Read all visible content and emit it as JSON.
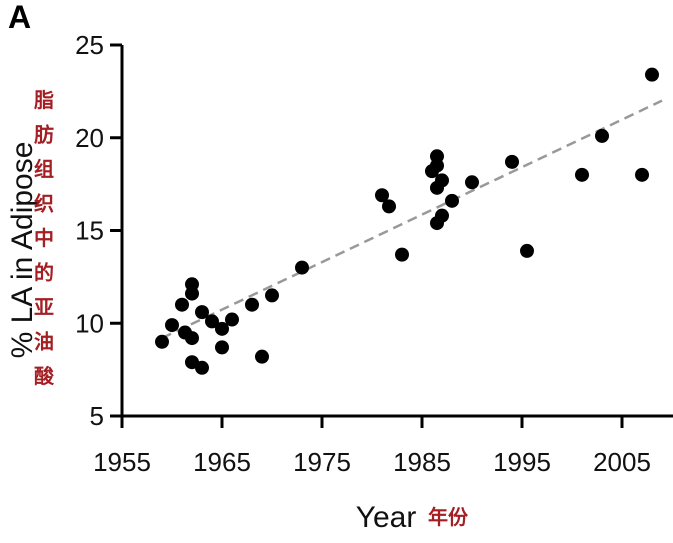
{
  "chart_data": {
    "type": "scatter",
    "panel_label": "A",
    "xlabel": "Year",
    "xlabel_cn": "年份",
    "ylabel": "% LA in Adipose",
    "ylabel_cn": "脂肪组织中的亚油酸",
    "xlim": [
      1955,
      2009
    ],
    "ylim": [
      5,
      25
    ],
    "x_ticks": [
      1955,
      1965,
      1975,
      1985,
      1995,
      2005
    ],
    "y_ticks": [
      5,
      10,
      15,
      20,
      25
    ],
    "grid": false,
    "legend": "none",
    "marker_color": "#000000",
    "trendline": {
      "style": "dashed",
      "color": "#999999",
      "from": [
        1959,
        9.2
      ],
      "to": [
        2009,
        22.0
      ]
    },
    "points": [
      {
        "x": 1959,
        "y": 9.0
      },
      {
        "x": 1960,
        "y": 9.9
      },
      {
        "x": 1961,
        "y": 11.0
      },
      {
        "x": 1961.3,
        "y": 9.5
      },
      {
        "x": 1962,
        "y": 12.1
      },
      {
        "x": 1962,
        "y": 11.6
      },
      {
        "x": 1962,
        "y": 9.2
      },
      {
        "x": 1962,
        "y": 7.9
      },
      {
        "x": 1963,
        "y": 10.6
      },
      {
        "x": 1963,
        "y": 7.6
      },
      {
        "x": 1964,
        "y": 10.1
      },
      {
        "x": 1965,
        "y": 9.7
      },
      {
        "x": 1965,
        "y": 8.7
      },
      {
        "x": 1966,
        "y": 10.2
      },
      {
        "x": 1968,
        "y": 11.0
      },
      {
        "x": 1969,
        "y": 8.2
      },
      {
        "x": 1970,
        "y": 11.5
      },
      {
        "x": 1973,
        "y": 13.0
      },
      {
        "x": 1981,
        "y": 16.9
      },
      {
        "x": 1981.7,
        "y": 16.3
      },
      {
        "x": 1983,
        "y": 13.7
      },
      {
        "x": 1986,
        "y": 18.2
      },
      {
        "x": 1986.5,
        "y": 19.0
      },
      {
        "x": 1986.5,
        "y": 18.5
      },
      {
        "x": 1986.5,
        "y": 17.3
      },
      {
        "x": 1986.5,
        "y": 15.4
      },
      {
        "x": 1987,
        "y": 17.7
      },
      {
        "x": 1987,
        "y": 15.8
      },
      {
        "x": 1988,
        "y": 16.6
      },
      {
        "x": 1990,
        "y": 17.6
      },
      {
        "x": 1994,
        "y": 18.7
      },
      {
        "x": 1995.5,
        "y": 13.9
      },
      {
        "x": 2001,
        "y": 18.0
      },
      {
        "x": 2003,
        "y": 20.1
      },
      {
        "x": 2007,
        "y": 18.0
      },
      {
        "x": 2008,
        "y": 23.4
      }
    ]
  }
}
